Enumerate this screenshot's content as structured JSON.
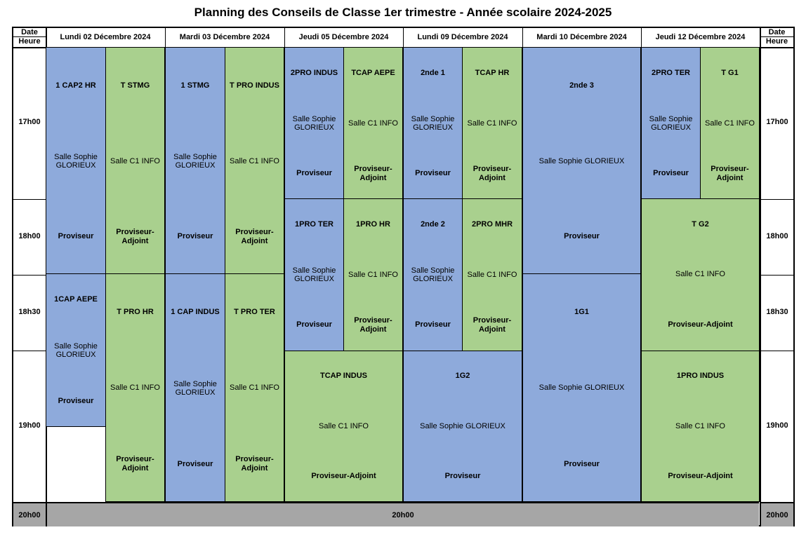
{
  "title": "Planning des Conseils de Classe 1er trimestre - Année scolaire 2024-2025",
  "corner": {
    "date": "Date",
    "heure": "Heure"
  },
  "days": [
    "Lundi 02 Décembre 2024",
    "Mardi 03 Décembre 2024",
    "Jeudi 05 Décembre 2024",
    "Lundi 09 Décembre 2024",
    "Mardi 10 Décembre 2024",
    "Jeudi 12 Décembre 2024"
  ],
  "times": [
    "17h00",
    "18h00",
    "18h30",
    "19h00"
  ],
  "end_time": "20h00",
  "rooms": {
    "sophie": "Salle Sophie GLORIEUX",
    "c1": "Salle C1 INFO"
  },
  "roles": {
    "proviseur": "Proviseur",
    "adjoint": "Proviseur-Adjoint"
  },
  "colors": {
    "blue": "#8eaadb",
    "green": "#a9d08e",
    "footer": "#a6a6a6"
  },
  "sessions": {
    "d1a": {
      "class": "1 CAP2 HR",
      "room": "Salle Sophie GLORIEUX",
      "role": "Proviseur",
      "color": "blue"
    },
    "d1b": {
      "class": "T STMG",
      "room": "Salle C1 INFO",
      "role": "Proviseur-Adjoint",
      "color": "green"
    },
    "d1c": {
      "class": "1CAP AEPE",
      "room": "Salle Sophie GLORIEUX",
      "role": "Proviseur",
      "color": "blue"
    },
    "d1d": {
      "class": "T PRO HR",
      "room": "Salle C1 INFO",
      "role": "Proviseur-Adjoint",
      "color": "green"
    },
    "d2a": {
      "class": "1 STMG",
      "room": "Salle Sophie GLORIEUX",
      "role": "Proviseur",
      "color": "blue"
    },
    "d2b": {
      "class": "T PRO INDUS",
      "room": "Salle C1 INFO",
      "role": "Proviseur-Adjoint",
      "color": "green"
    },
    "d2c": {
      "class": "1 CAP INDUS",
      "room": "Salle Sophie GLORIEUX",
      "role": "Proviseur",
      "color": "blue"
    },
    "d2d": {
      "class": "T PRO TER",
      "room": "Salle C1 INFO",
      "role": "Proviseur-Adjoint",
      "color": "green"
    },
    "d3a": {
      "class": "2PRO INDUS",
      "room": "Salle Sophie GLORIEUX",
      "role": "Proviseur",
      "color": "blue"
    },
    "d3b": {
      "class": "TCAP AEPE",
      "room": "Salle C1 INFO",
      "role": "Proviseur-Adjoint",
      "color": "green"
    },
    "d3c": {
      "class": "1PRO TER",
      "room": "Salle Sophie GLORIEUX",
      "role": "Proviseur",
      "color": "blue"
    },
    "d3d": {
      "class": "1PRO HR",
      "room": "Salle C1 INFO",
      "role": "Proviseur-Adjoint",
      "color": "green"
    },
    "d3e": {
      "class": "TCAP INDUS",
      "room": "Salle C1 INFO",
      "role": "Proviseur-Adjoint",
      "color": "green"
    },
    "d4a": {
      "class": "2nde 1",
      "room": "Salle Sophie GLORIEUX",
      "role": "Proviseur",
      "color": "blue"
    },
    "d4b": {
      "class": "TCAP HR",
      "room": "Salle C1 INFO",
      "role": "Proviseur-Adjoint",
      "color": "green"
    },
    "d4c": {
      "class": "2nde 2",
      "room": "Salle Sophie GLORIEUX",
      "role": "Proviseur",
      "color": "blue"
    },
    "d4d": {
      "class": "2PRO MHR",
      "room": "Salle C1 INFO",
      "role": "Proviseur-Adjoint",
      "color": "green"
    },
    "d4e": {
      "class": "1G2",
      "room": "Salle Sophie GLORIEUX",
      "role": "Proviseur",
      "color": "blue"
    },
    "d5a": {
      "class": "2nde 3",
      "room": "Salle Sophie GLORIEUX",
      "role": "Proviseur",
      "color": "blue"
    },
    "d5b": {
      "class": "1G1",
      "room": "Salle Sophie GLORIEUX",
      "role": "Proviseur",
      "color": "blue"
    },
    "d6a": {
      "class": "2PRO TER",
      "room": "Salle Sophie GLORIEUX",
      "role": "Proviseur",
      "color": "blue"
    },
    "d6b": {
      "class": "T G1",
      "room": "Salle C1 INFO",
      "role": "Proviseur-Adjoint",
      "color": "green"
    },
    "d6c": {
      "class": "T G2",
      "room": "Salle C1 INFO",
      "role": "Proviseur-Adjoint",
      "color": "green"
    },
    "d6d": {
      "class": "1PRO INDUS",
      "room": "Salle C1 INFO",
      "role": "Proviseur-Adjoint",
      "color": "green"
    }
  }
}
